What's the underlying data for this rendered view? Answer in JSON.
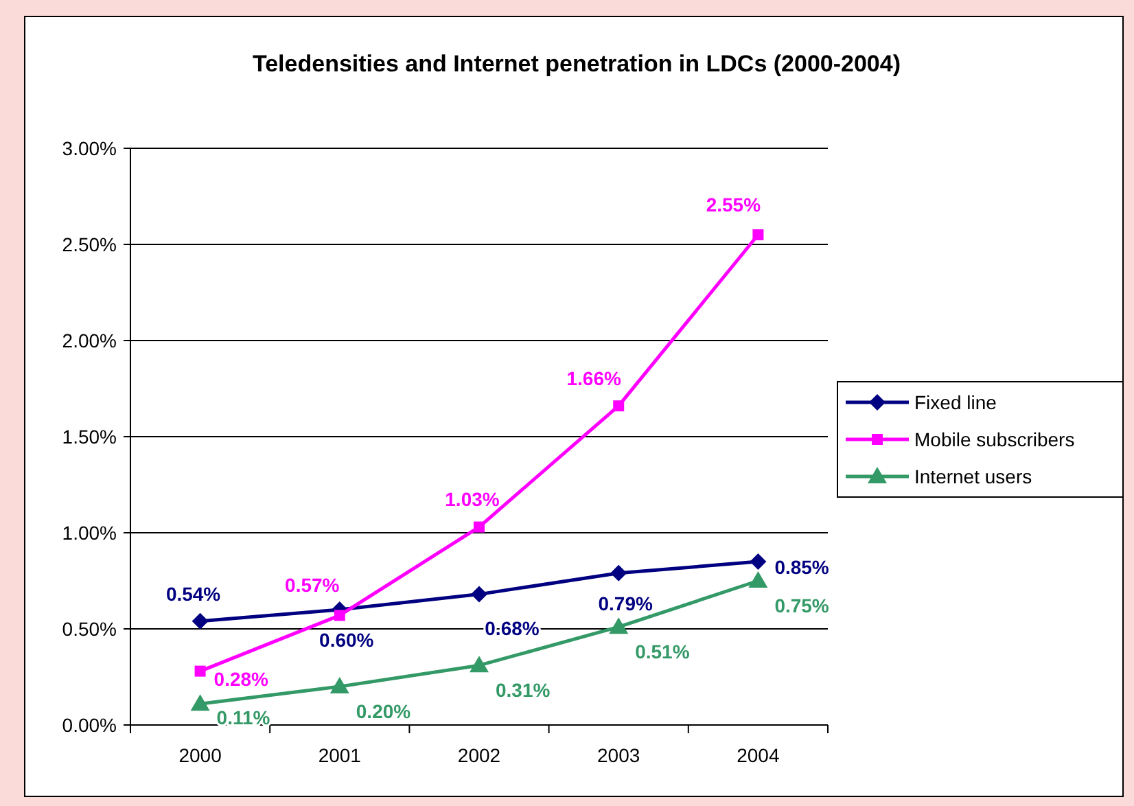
{
  "chart_data": {
    "type": "line",
    "title": "Teledensities and Internet penetration in LDCs (2000-2004)",
    "categories": [
      "2000",
      "2001",
      "2002",
      "2003",
      "2004"
    ],
    "series": [
      {
        "name": "Fixed line",
        "color": "#000080",
        "marker": "diamond",
        "values": [
          0.54,
          0.6,
          0.68,
          0.79,
          0.85
        ],
        "value_labels": [
          "0.54%",
          "0.60%",
          "0.68%",
          "0.79%",
          "0.85%"
        ]
      },
      {
        "name": "Mobile subscribers",
        "color": "#ff00ff",
        "marker": "square",
        "values": [
          0.28,
          0.57,
          1.03,
          1.66,
          2.55
        ],
        "value_labels": [
          "0.28%",
          "0.57%",
          "1.03%",
          "1.66%",
          "2.55%"
        ]
      },
      {
        "name": "Internet users",
        "color": "#339966",
        "marker": "triangle",
        "values": [
          0.11,
          0.2,
          0.31,
          0.51,
          0.75
        ],
        "value_labels": [
          "0.11%",
          "0.20%",
          "0.31%",
          "0.51%",
          "0.75%"
        ]
      }
    ],
    "ylim": [
      0,
      3
    ],
    "yticks": [
      {
        "value": 0,
        "label": "0.00%"
      },
      {
        "value": 0.5,
        "label": "0.50%"
      },
      {
        "value": 1,
        "label": "1.00%"
      },
      {
        "value": 1.5,
        "label": "1.50%"
      },
      {
        "value": 2,
        "label": "2.00%"
      },
      {
        "value": 2.5,
        "label": "2.50%"
      },
      {
        "value": 3,
        "label": "3.00%"
      }
    ],
    "grid": "y",
    "legend": "right"
  }
}
